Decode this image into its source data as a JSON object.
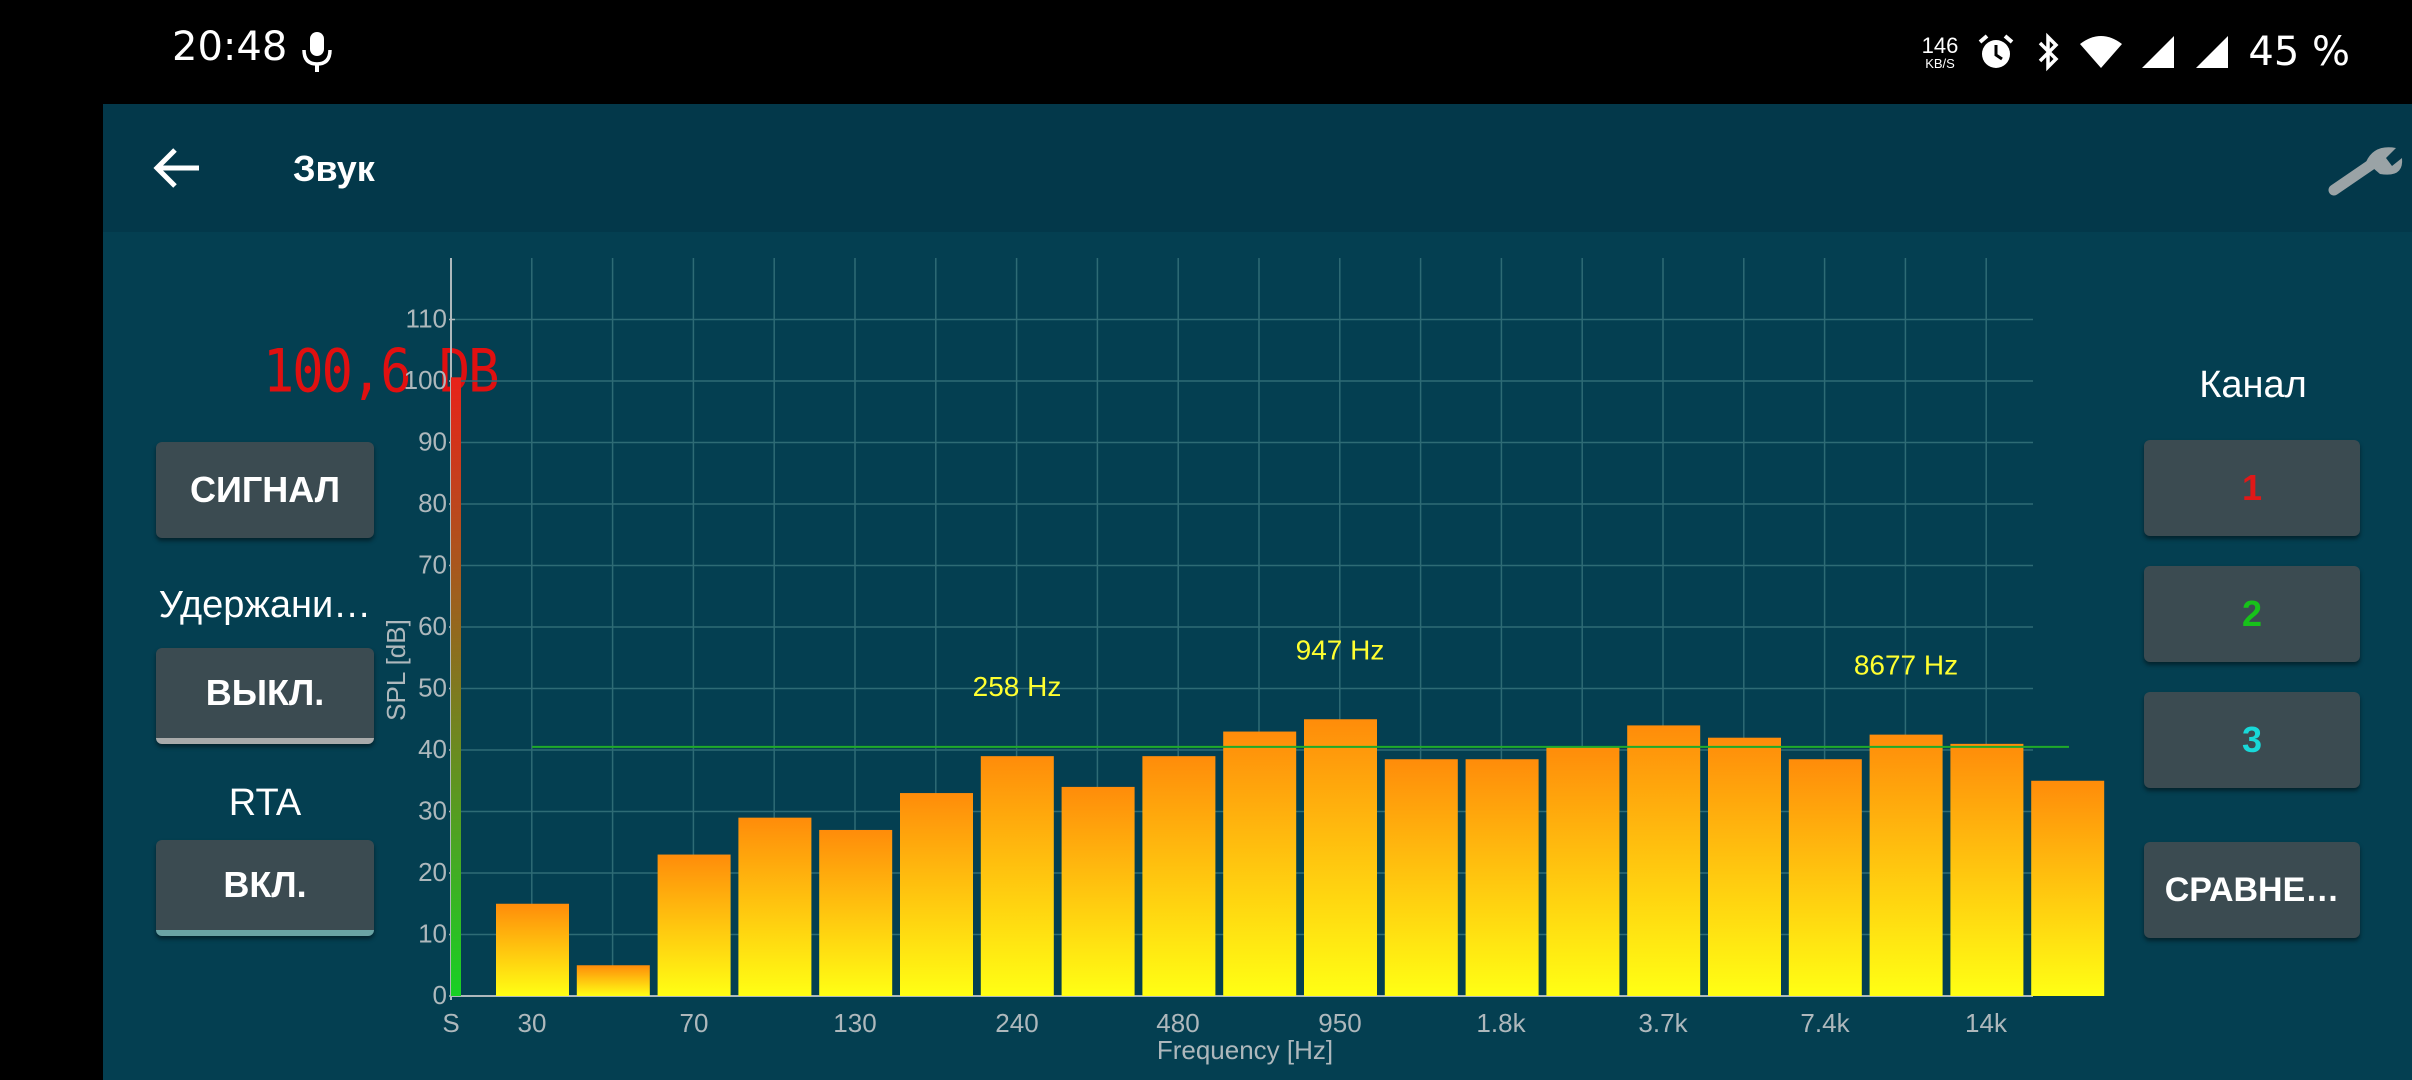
{
  "status_bar": {
    "time": "20:48",
    "net_speed": "146",
    "net_unit": "KB/S",
    "battery": "45 %",
    "icons": [
      "mic-icon",
      "alarm-icon",
      "bluetooth-icon",
      "wifi-icon",
      "signal-icon",
      "signal-icon"
    ]
  },
  "toolbar": {
    "title": "Звук",
    "back_icon": "arrow-left-icon",
    "settings_icon": "wrench-icon"
  },
  "left_panel": {
    "level": "100,6 DB",
    "signal_button": "СИГНАЛ",
    "hold_label": "Удержани…",
    "hold_button": "ВЫКЛ.",
    "rta_label": "RTA",
    "rta_button": "ВКЛ."
  },
  "right_panel": {
    "channel_label": "Канал",
    "channels": [
      {
        "label": "1",
        "color": "#e01818"
      },
      {
        "label": "2",
        "color": "#17c21a"
      },
      {
        "label": "3",
        "color": "#18d8d8"
      }
    ],
    "compare_button": "СРАВНЕ…"
  },
  "chart_data": {
    "type": "bar",
    "xlabel": "Frequency [Hz]",
    "ylabel": "SPL [dB]",
    "ylim": [
      0,
      120
    ],
    "yticks": [
      0,
      10,
      20,
      30,
      40,
      50,
      60,
      70,
      80,
      90,
      100,
      110
    ],
    "xtick_labels": [
      "S",
      "30",
      "70",
      "130",
      "240",
      "480",
      "950",
      "1.8k",
      "3.7k",
      "7.4k",
      "14k"
    ],
    "grid": true,
    "values": [
      15,
      5,
      23,
      29,
      27,
      33,
      39,
      34,
      39,
      43,
      45,
      38.5,
      38.5,
      40.5,
      44,
      42,
      38.5,
      42.5,
      41,
      35
    ],
    "average_line": 40.5,
    "level_meter": 100.6,
    "peak_labels": [
      {
        "text": "258 Hz",
        "band_value": 39
      },
      {
        "text": "947 Hz",
        "band_value": 45
      },
      {
        "text": "8677 Hz",
        "band_value": 42.5
      }
    ],
    "colors": {
      "bar_top": "#ff8c0a",
      "bar_bottom": "#ffff14",
      "grid": "#2e6b75",
      "average_line": "#1faa2a",
      "peak_text": "#ffff30",
      "meter_top": "#e8221a",
      "meter_bottom": "#18d024"
    }
  }
}
